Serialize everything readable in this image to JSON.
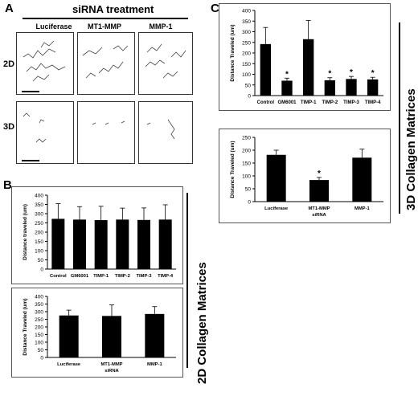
{
  "panels": {
    "a": {
      "letter": "A",
      "title": "siRNA treatment",
      "columns": [
        "Luciferase",
        "MT1-MMP",
        "MMP-1"
      ],
      "rows": [
        "2D",
        "3D"
      ]
    },
    "b": {
      "letter": "B",
      "side_label": "2D Collagen Matrices"
    },
    "c": {
      "letter": "C",
      "side_label": "3D Collagen Matrices"
    }
  },
  "chart_data": [
    {
      "id": "b_top",
      "type": "bar",
      "categories": [
        "Control",
        "GM6001",
        "TIMP-1",
        "TIMP-2",
        "TIMP-3",
        "TIMP-4"
      ],
      "values": [
        272,
        268,
        265,
        268,
        266,
        268
      ],
      "errors": [
        82,
        70,
        75,
        62,
        65,
        80
      ],
      "significant": [
        false,
        false,
        false,
        false,
        false,
        false
      ],
      "ylabel": "Distance traveled (um)",
      "ylim": [
        0,
        400
      ],
      "yticks": [
        0,
        50,
        100,
        150,
        200,
        250,
        300,
        350,
        400
      ]
    },
    {
      "id": "b_bottom",
      "type": "bar",
      "categories": [
        "Luciferase",
        "MT1-MMP",
        "MMP-1"
      ],
      "xlabel": "siRNA",
      "values": [
        275,
        272,
        285
      ],
      "errors": [
        35,
        72,
        48
      ],
      "significant": [
        false,
        false,
        false
      ],
      "ylabel": "Distance Traveled (um)",
      "ylim": [
        0,
        400
      ],
      "yticks": [
        0,
        50,
        100,
        150,
        200,
        250,
        300,
        350,
        400
      ]
    },
    {
      "id": "c_top",
      "type": "bar",
      "categories": [
        "Control",
        "GM6001",
        "TIMP-1",
        "TIMP-2",
        "TIMP-3",
        "TIMP-4"
      ],
      "values": [
        242,
        70,
        265,
        72,
        78,
        76
      ],
      "errors": [
        78,
        12,
        88,
        12,
        12,
        10
      ],
      "significant": [
        false,
        true,
        false,
        true,
        true,
        true
      ],
      "ylabel": "Distance Traveled (um)",
      "ylim": [
        0,
        400
      ],
      "yticks": [
        0,
        50,
        100,
        150,
        200,
        250,
        300,
        350,
        400
      ]
    },
    {
      "id": "c_bottom",
      "type": "bar",
      "categories": [
        "Luciferase",
        "MT1-MMP",
        "MMP-1"
      ],
      "xlabel": "siRNA",
      "values": [
        182,
        84,
        171
      ],
      "errors": [
        18,
        10,
        33
      ],
      "significant": [
        false,
        true,
        false
      ],
      "ylabel": "Distance Traveled (um)",
      "ylim": [
        0,
        250
      ],
      "yticks": [
        0,
        50,
        100,
        150,
        200,
        250
      ]
    }
  ]
}
